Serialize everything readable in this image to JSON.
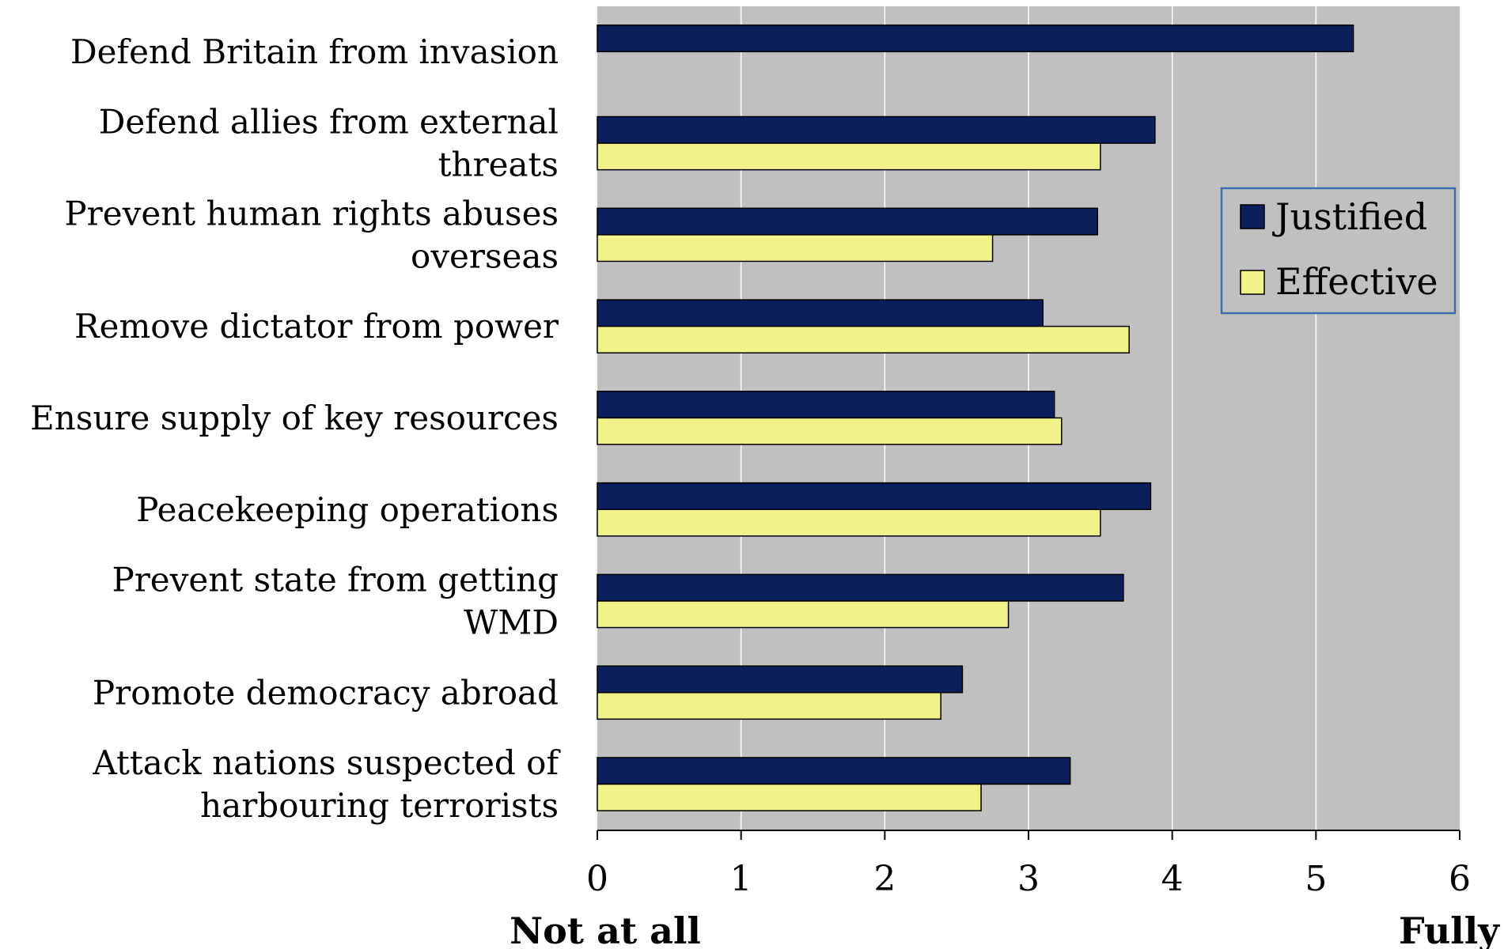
{
  "chart_data": {
    "type": "bar",
    "orientation": "horizontal",
    "categories": [
      [
        "Defend Britain from invasion"
      ],
      [
        "Defend allies from external",
        "threats"
      ],
      [
        "Prevent human rights abuses",
        "overseas"
      ],
      [
        "Remove dictator from power"
      ],
      [
        "Ensure supply of key resources"
      ],
      [
        "Peacekeeping operations"
      ],
      [
        "Prevent state from getting",
        "WMD"
      ],
      [
        "Promote democracy abroad"
      ],
      [
        "Attack nations suspected of",
        "harbouring terrorists"
      ]
    ],
    "series": [
      {
        "name": "Justified",
        "color": "#0B1F5C",
        "values": [
          5.26,
          3.88,
          3.48,
          3.1,
          3.18,
          3.85,
          3.66,
          2.54,
          3.29
        ]
      },
      {
        "name": "Effective",
        "color": "#F2F28A",
        "values": [
          null,
          3.5,
          2.75,
          3.7,
          3.23,
          3.5,
          2.86,
          2.39,
          2.67
        ]
      }
    ],
    "xlim": [
      0,
      6
    ],
    "xticks": [
      "0",
      "1",
      "2",
      "3",
      "4",
      "5",
      "6"
    ],
    "x_end_labels": {
      "left": "Not at all",
      "right": "Fully"
    },
    "plot_background": "#C0C0C0",
    "gridlines": true,
    "legend_position": "right"
  }
}
